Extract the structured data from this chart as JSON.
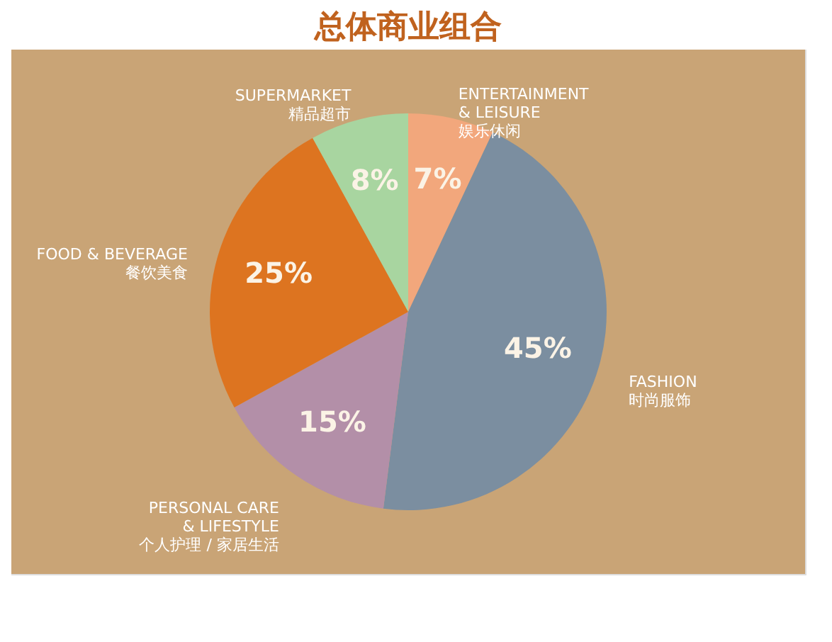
{
  "chart_data": {
    "type": "pie",
    "title": "总体商业组合",
    "categories": [
      "ENTERTAINMENT\n& LEISURE\n娱乐休闲",
      "FASHION\n时尚服饰",
      "PERSONAL CARE\n& LIFESTYLE\n个人护理 / 家居生活",
      "FOOD & BEVERAGE\n餐饮美食",
      "SUPERMARKET\n精品超市"
    ],
    "values": [
      7,
      45,
      15,
      25,
      8
    ],
    "value_labels": [
      "7%",
      "45%",
      "15%",
      "25%",
      "8%"
    ],
    "colors": [
      "#f2a77c",
      "#7b8ea0",
      "#b38fa8",
      "#dd7420",
      "#a8d5a0"
    ],
    "legend": false
  }
}
